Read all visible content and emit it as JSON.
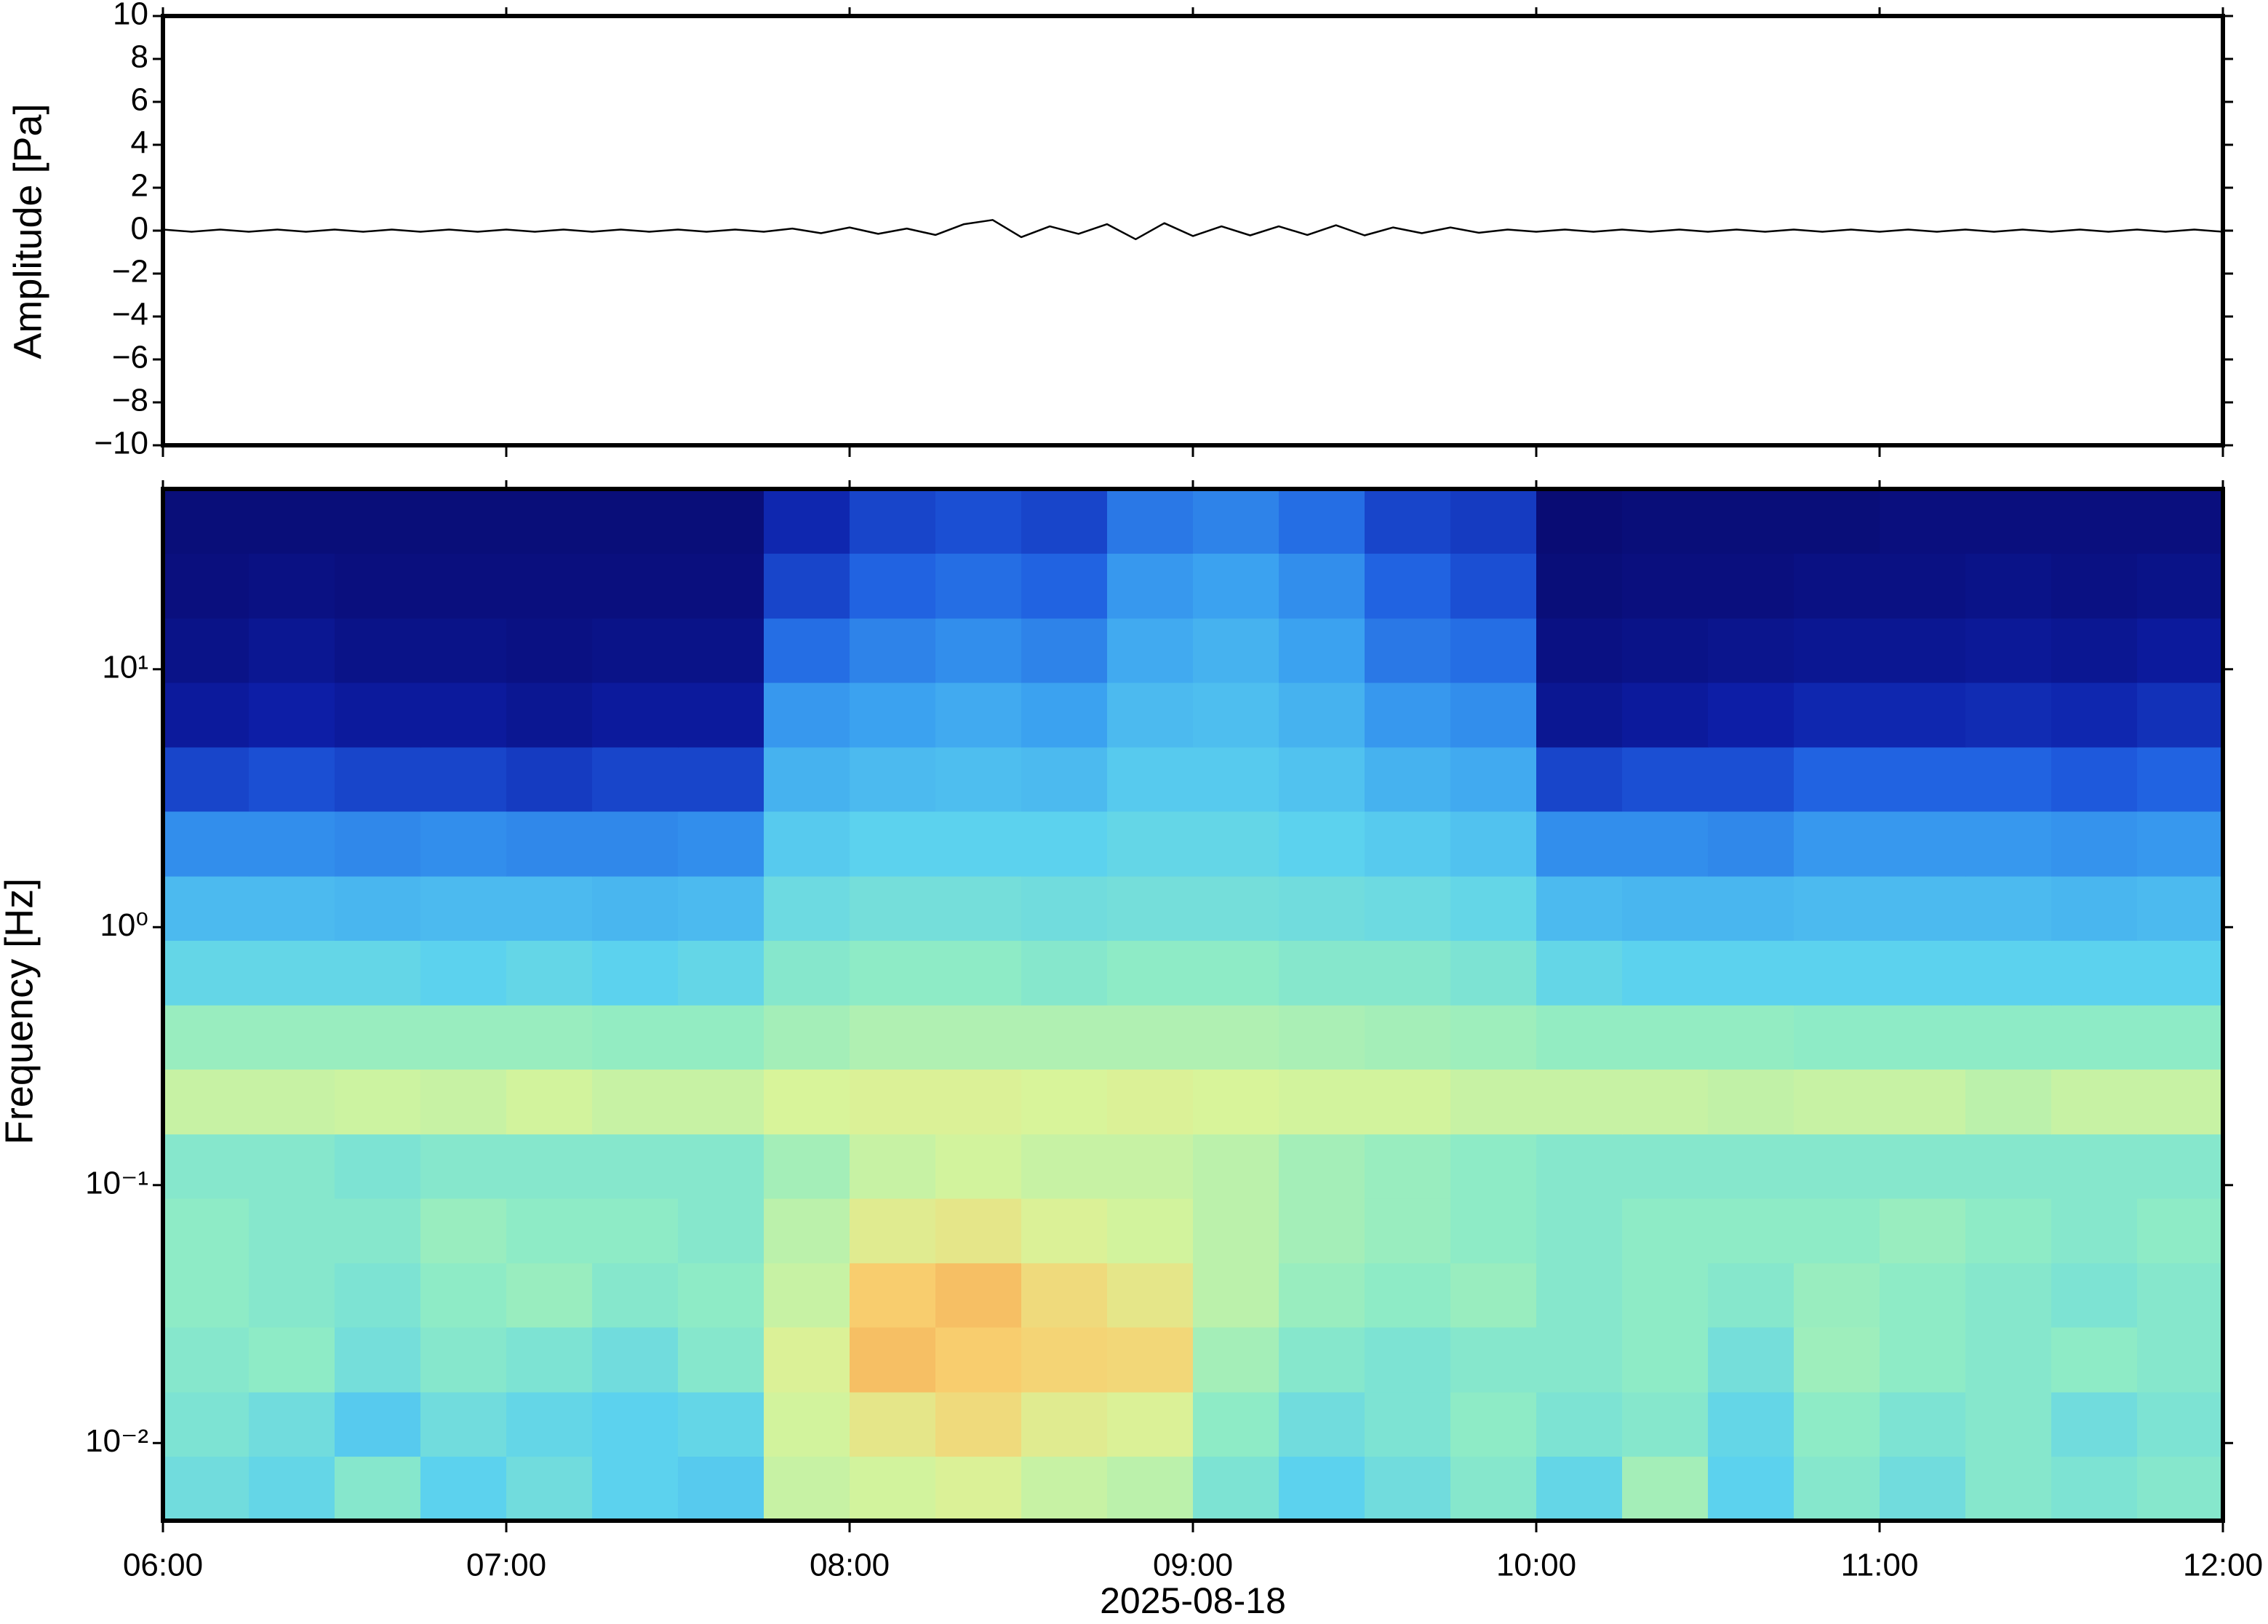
{
  "chart_data": [
    {
      "type": "line",
      "ylabel": "Amplitude [Pa]",
      "color": "#000000",
      "x": [
        "06:00",
        "06:05",
        "06:10",
        "06:15",
        "06:20",
        "06:25",
        "06:30",
        "06:35",
        "06:40",
        "06:45",
        "06:50",
        "06:55",
        "07:00",
        "07:05",
        "07:10",
        "07:15",
        "07:20",
        "07:25",
        "07:30",
        "07:35",
        "07:40",
        "07:45",
        "07:50",
        "07:55",
        "08:00",
        "08:05",
        "08:10",
        "08:15",
        "08:20",
        "08:25",
        "08:30",
        "08:35",
        "08:40",
        "08:45",
        "08:50",
        "08:55",
        "09:00",
        "09:05",
        "09:10",
        "09:15",
        "09:20",
        "09:25",
        "09:30",
        "09:35",
        "09:40",
        "09:45",
        "09:50",
        "09:55",
        "10:00",
        "10:05",
        "10:10",
        "10:15",
        "10:20",
        "10:25",
        "10:30",
        "10:35",
        "10:40",
        "10:45",
        "10:50",
        "10:55",
        "11:00",
        "11:05",
        "11:10",
        "11:15",
        "11:20",
        "11:25",
        "11:30",
        "11:35",
        "11:40",
        "11:45",
        "11:50",
        "11:55",
        "12:00"
      ],
      "values": [
        0.05,
        -0.05,
        0.05,
        -0.05,
        0.05,
        -0.05,
        0.05,
        -0.05,
        0.05,
        -0.05,
        0.05,
        -0.05,
        0.05,
        -0.05,
        0.05,
        -0.05,
        0.05,
        -0.05,
        0.05,
        -0.05,
        0.05,
        -0.05,
        0.1,
        -0.12,
        0.15,
        -0.15,
        0.1,
        -0.2,
        0.3,
        0.5,
        -0.3,
        0.2,
        -0.15,
        0.3,
        -0.4,
        0.35,
        -0.25,
        0.2,
        -0.22,
        0.2,
        -0.2,
        0.25,
        -0.22,
        0.15,
        -0.12,
        0.15,
        -0.1,
        0.05,
        -0.05,
        0.05,
        -0.05,
        0.05,
        -0.05,
        0.05,
        -0.05,
        0.05,
        -0.05,
        0.05,
        -0.05,
        0.05,
        -0.05,
        0.05,
        -0.05,
        0.05,
        -0.05,
        0.05,
        -0.05,
        0.05,
        -0.05,
        0.05,
        -0.05,
        0.05,
        -0.05
      ],
      "xlim": [
        "06:00",
        "12:00"
      ],
      "xticks": [
        "06:00",
        "07:00",
        "08:00",
        "09:00",
        "10:00",
        "11:00",
        "12:00"
      ],
      "ylim": [
        -10,
        10
      ],
      "yticks": [
        {
          "value": -10,
          "label": "−10"
        },
        {
          "value": -8,
          "label": "−8"
        },
        {
          "value": -6,
          "label": "−6"
        },
        {
          "value": -4,
          "label": "−4"
        },
        {
          "value": -2,
          "label": "−2"
        },
        0,
        2,
        4,
        6,
        8,
        10
      ]
    },
    {
      "type": "heatmap",
      "ylabel": "Frequency [Hz]",
      "xlabel": "2025-08-18",
      "log_y": true,
      "x_edges": [
        "06:00",
        "06:15",
        "06:30",
        "06:45",
        "07:00",
        "07:15",
        "07:30",
        "07:45",
        "08:00",
        "08:15",
        "08:30",
        "08:45",
        "09:00",
        "09:15",
        "09:30",
        "09:45",
        "10:00",
        "10:15",
        "10:30",
        "10:45",
        "11:00",
        "11:15",
        "11:30",
        "11:45",
        "12:00"
      ],
      "y_edges": [
        0.005,
        0.0089,
        0.0158,
        0.0282,
        0.05,
        0.089,
        0.158,
        0.282,
        0.5,
        0.89,
        1.58,
        2.82,
        5,
        8.9,
        15.8,
        28.2,
        50
      ],
      "clim": [
        0,
        1
      ],
      "colormap": [
        "#08086a",
        "#0d1fa8",
        "#1f5ee0",
        "#3aa0f0",
        "#5cd2ee",
        "#90ecc4",
        "#d8f49a",
        "#f8d070",
        "#f07a32"
      ],
      "values": [
        [
          0.55,
          0.52,
          0.6,
          0.5,
          0.55,
          0.5,
          0.48,
          0.72,
          0.74,
          0.76,
          0.72,
          0.7,
          0.58,
          0.5,
          0.55,
          0.6,
          0.52,
          0.66,
          0.5,
          0.6,
          0.55,
          0.6,
          0.58,
          0.6
        ],
        [
          0.58,
          0.55,
          0.48,
          0.55,
          0.52,
          0.5,
          0.52,
          0.74,
          0.8,
          0.84,
          0.78,
          0.76,
          0.62,
          0.55,
          0.58,
          0.62,
          0.58,
          0.6,
          0.52,
          0.62,
          0.58,
          0.6,
          0.55,
          0.58
        ],
        [
          0.6,
          0.62,
          0.56,
          0.6,
          0.58,
          0.55,
          0.6,
          0.76,
          0.9,
          0.88,
          0.86,
          0.85,
          0.66,
          0.6,
          0.58,
          0.6,
          0.6,
          0.62,
          0.56,
          0.65,
          0.62,
          0.6,
          0.62,
          0.6
        ],
        [
          0.62,
          0.6,
          0.58,
          0.62,
          0.64,
          0.6,
          0.62,
          0.72,
          0.88,
          0.9,
          0.84,
          0.8,
          0.7,
          0.64,
          0.62,
          0.64,
          0.6,
          0.62,
          0.6,
          0.64,
          0.62,
          0.6,
          0.58,
          0.6
        ],
        [
          0.62,
          0.6,
          0.6,
          0.64,
          0.62,
          0.62,
          0.6,
          0.7,
          0.78,
          0.8,
          0.76,
          0.74,
          0.7,
          0.66,
          0.64,
          0.62,
          0.6,
          0.62,
          0.62,
          0.62,
          0.64,
          0.62,
          0.6,
          0.62
        ],
        [
          0.6,
          0.6,
          0.58,
          0.6,
          0.6,
          0.6,
          0.6,
          0.66,
          0.72,
          0.74,
          0.72,
          0.72,
          0.7,
          0.66,
          0.64,
          0.62,
          0.6,
          0.6,
          0.6,
          0.6,
          0.6,
          0.6,
          0.6,
          0.6
        ],
        [
          0.72,
          0.72,
          0.73,
          0.72,
          0.74,
          0.72,
          0.72,
          0.75,
          0.76,
          0.76,
          0.75,
          0.76,
          0.75,
          0.74,
          0.74,
          0.72,
          0.72,
          0.72,
          0.71,
          0.72,
          0.72,
          0.7,
          0.72,
          0.72
        ],
        [
          0.64,
          0.64,
          0.64,
          0.64,
          0.64,
          0.63,
          0.63,
          0.66,
          0.68,
          0.68,
          0.68,
          0.68,
          0.68,
          0.67,
          0.66,
          0.65,
          0.63,
          0.63,
          0.63,
          0.62,
          0.62,
          0.62,
          0.62,
          0.62
        ],
        [
          0.52,
          0.52,
          0.52,
          0.5,
          0.52,
          0.5,
          0.52,
          0.6,
          0.62,
          0.62,
          0.6,
          0.62,
          0.62,
          0.6,
          0.6,
          0.58,
          0.52,
          0.5,
          0.5,
          0.5,
          0.5,
          0.5,
          0.5,
          0.5
        ],
        [
          0.44,
          0.44,
          0.43,
          0.44,
          0.44,
          0.43,
          0.44,
          0.54,
          0.56,
          0.56,
          0.55,
          0.56,
          0.56,
          0.55,
          0.54,
          0.52,
          0.44,
          0.43,
          0.43,
          0.44,
          0.44,
          0.44,
          0.43,
          0.44
        ],
        [
          0.34,
          0.34,
          0.33,
          0.34,
          0.33,
          0.33,
          0.34,
          0.48,
          0.5,
          0.5,
          0.5,
          0.52,
          0.52,
          0.5,
          0.48,
          0.46,
          0.34,
          0.34,
          0.33,
          0.36,
          0.36,
          0.36,
          0.35,
          0.36
        ],
        [
          0.2,
          0.22,
          0.2,
          0.2,
          0.18,
          0.2,
          0.2,
          0.42,
          0.44,
          0.45,
          0.44,
          0.48,
          0.48,
          0.46,
          0.42,
          0.4,
          0.2,
          0.22,
          0.22,
          0.26,
          0.26,
          0.26,
          0.24,
          0.26
        ],
        [
          0.1,
          0.12,
          0.1,
          0.1,
          0.08,
          0.1,
          0.1,
          0.36,
          0.38,
          0.4,
          0.38,
          0.44,
          0.45,
          0.42,
          0.36,
          0.34,
          0.08,
          0.1,
          0.12,
          0.14,
          0.14,
          0.15,
          0.14,
          0.16
        ],
        [
          0.06,
          0.08,
          0.06,
          0.06,
          0.05,
          0.06,
          0.06,
          0.28,
          0.32,
          0.34,
          0.32,
          0.4,
          0.42,
          0.38,
          0.3,
          0.28,
          0.05,
          0.06,
          0.07,
          0.08,
          0.08,
          0.09,
          0.08,
          0.1
        ],
        [
          0.04,
          0.05,
          0.04,
          0.04,
          0.04,
          0.04,
          0.04,
          0.2,
          0.26,
          0.28,
          0.26,
          0.36,
          0.38,
          0.34,
          0.26,
          0.22,
          0.03,
          0.04,
          0.04,
          0.05,
          0.05,
          0.06,
          0.05,
          0.06
        ],
        [
          0.03,
          0.03,
          0.03,
          0.03,
          0.03,
          0.03,
          0.03,
          0.14,
          0.2,
          0.22,
          0.2,
          0.3,
          0.32,
          0.28,
          0.2,
          0.18,
          0.02,
          0.03,
          0.03,
          0.03,
          0.04,
          0.04,
          0.04,
          0.04
        ]
      ],
      "xlim": [
        "06:00",
        "12:00"
      ],
      "xticks": [
        "06:00",
        "07:00",
        "08:00",
        "09:00",
        "10:00",
        "11:00",
        "12:00"
      ],
      "ylim": [
        0.005,
        50
      ],
      "yticks": [
        {
          "value": 0.01,
          "label": "10⁻²"
        },
        {
          "value": 0.1,
          "label": "10⁻¹"
        },
        {
          "value": 1,
          "label": "10⁰"
        },
        {
          "value": 10,
          "label": "10¹"
        }
      ]
    }
  ]
}
